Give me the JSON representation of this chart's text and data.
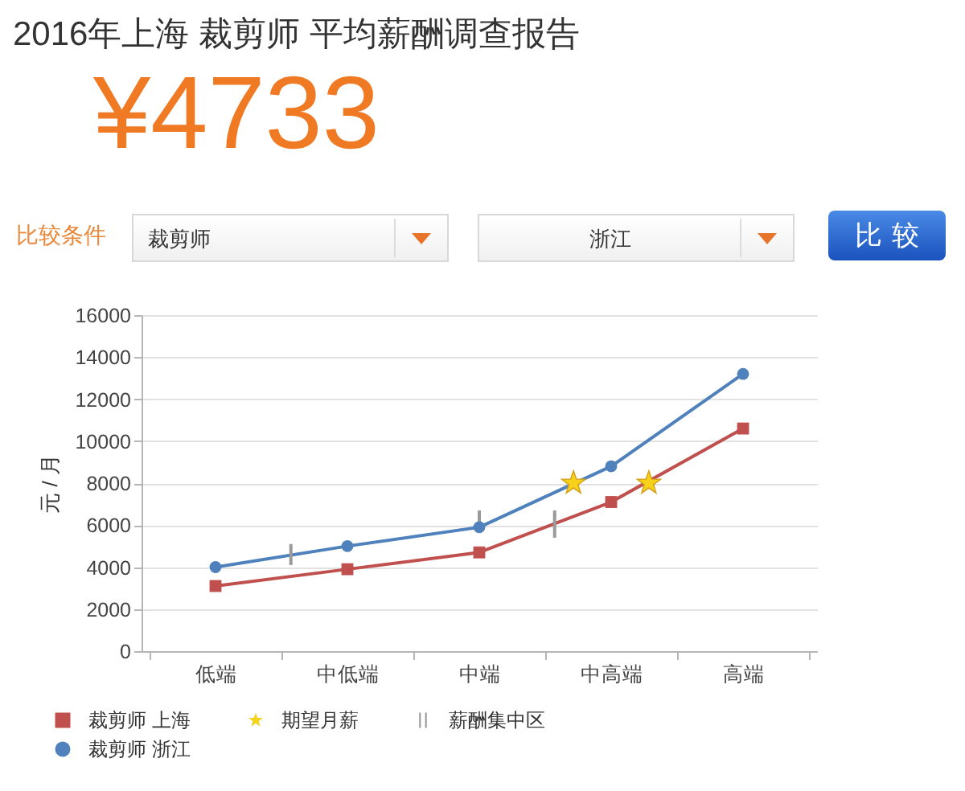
{
  "chart_data": {
    "type": "line",
    "title": "2016年上海 裁剪师 平均薪酬调查报告",
    "subtitle": "¥4733",
    "annotations": [
      "比较条件",
      "裁剪师",
      "浙江",
      "比较"
    ],
    "ylabel": "元 / 月",
    "categories": [
      null,
      null,
      null,
      "低端",
      null,
      null,
      null,
      null,
      null,
      null,
      "中低端",
      null,
      null,
      null,
      null,
      null,
      null,
      "中端",
      null,
      null,
      null,
      null,
      null,
      null,
      "中高端",
      null,
      null,
      null,
      null,
      null,
      null,
      "高端",
      null,
      null,
      null
    ],
    "ylim": [
      0,
      16000
    ],
    "yticks": [
      0,
      2000,
      4000,
      6000,
      8000,
      10000,
      12000,
      14000,
      16000
    ],
    "grid": "y",
    "legend": "bottom left",
    "series": [
      {
        "name": "裁剪师 上海",
        "color": "#c0504d",
        "marker": "square",
        "x": [
          "低端",
          "中低端",
          "中端",
          "中高端",
          "高端"
        ],
        "values": [
          3100,
          3900,
          4700,
          7100,
          10600
        ]
      },
      {
        "name": "期望月薪",
        "type": "scatter",
        "marker": "star",
        "color": "#f6d21b",
        "values": [
          null,
          null,
          null,
          null,
          null,
          null,
          null,
          null,
          null,
          null,
          null,
          null,
          null,
          null,
          null,
          null,
          null,
          null,
          null,
          null,
          null,
          null,
          8000,
          null,
          null,
          null,
          8000,
          null,
          null,
          null,
          null,
          null,
          null,
          null,
          null
        ]
      },
      {
        "name": "薪酬集中区",
        "type": "bar",
        "color": "#9a9a9a",
        "base": [
          null,
          null,
          null,
          null,
          null,
          null,
          null,
          4100,
          null,
          null,
          null,
          null,
          null,
          null,
          null,
          null,
          null,
          6000,
          null,
          null,
          null,
          5400,
          null,
          null,
          null,
          null,
          null,
          null,
          null,
          null,
          null,
          null,
          null,
          null,
          null
        ],
        "values": [
          null,
          null,
          null,
          null,
          null,
          null,
          null,
          1000,
          null,
          null,
          null,
          null,
          null,
          null,
          null,
          null,
          null,
          700,
          null,
          null,
          null,
          1300,
          null,
          null,
          null,
          null,
          null,
          null,
          null,
          null,
          null,
          null,
          null,
          null,
          null
        ]
      },
      {
        "name": "裁剪师 浙江",
        "color": "#4f81bd",
        "marker": "circle",
        "x": [
          "低端",
          "中低端",
          "中端",
          "中高端",
          "高端"
        ],
        "values": [
          4000,
          5000,
          5900,
          8800,
          13200
        ]
      }
    ]
  }
}
